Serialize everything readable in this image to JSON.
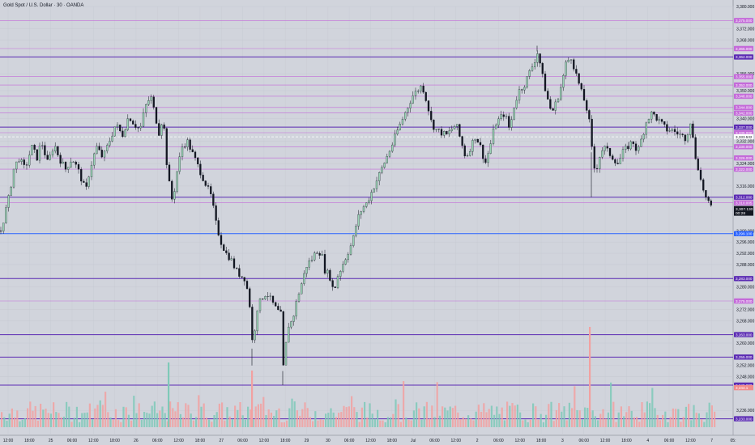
{
  "chart_data": {
    "type": "candlestick",
    "title": "Gold Spot / U.S. Dollar · 30 · OANDA",
    "instrument": "Gold Spot / U.S. Dollar",
    "timeframe": "30",
    "source": "OANDA",
    "ylim": [
      3230,
      3380
    ],
    "y_ticks": [
      3380,
      3372,
      3368,
      3356,
      3350,
      3340,
      3332,
      3324,
      3316,
      3300,
      3296,
      3292,
      3288,
      3280,
      3272,
      3268,
      3260,
      3252,
      3248,
      3236
    ],
    "x_tick_labels": [
      "12:00",
      "18:00",
      "25",
      "06:00",
      "12:00",
      "18:00",
      "26",
      "06:00",
      "12:00",
      "18:00",
      "27",
      "06:00",
      "12:00",
      "18:00",
      "29",
      "30",
      "06:00",
      "12:00",
      "18:00",
      "Jul",
      "06:00",
      "12:00",
      "2",
      "06:00",
      "12:00",
      "18:00",
      "3",
      "06:00",
      "12:00",
      "18:00",
      "4",
      "06:00",
      "12:00",
      "7",
      "05:"
    ],
    "price_line_label": "3,333.532",
    "last_price": {
      "price": "3,307.130",
      "countdown": "00:28",
      "value": 3307.13
    },
    "levels": [
      {
        "price": 3375,
        "label": "3,375.000",
        "type": "minor"
      },
      {
        "price": 3365,
        "label": "3,365.000",
        "type": "minor"
      },
      {
        "price": 3362,
        "label": "3,362.000",
        "type": "major"
      },
      {
        "price": 3355,
        "label": "3,355.000",
        "type": "minor"
      },
      {
        "price": 3352,
        "label": "3,352.000",
        "type": "minor"
      },
      {
        "price": 3348,
        "label": "3,348.000",
        "type": "minor"
      },
      {
        "price": 3344,
        "label": "3,344.000",
        "type": "minor"
      },
      {
        "price": 3342,
        "label": "3,342.000",
        "type": "minor"
      },
      {
        "price": 3337,
        "label": "3,337.000",
        "type": "major"
      },
      {
        "price": 3335,
        "label": "3,335.000",
        "type": "minor"
      },
      {
        "price": 3330,
        "label": "3,330.000",
        "type": "minor"
      },
      {
        "price": 3326,
        "label": "3,326.000",
        "type": "minor"
      },
      {
        "price": 3322,
        "label": "3,322.000",
        "type": "minor"
      },
      {
        "price": 3312,
        "label": "3,312.080",
        "type": "major"
      },
      {
        "price": 3310,
        "label": "3,310.005",
        "type": "minor"
      },
      {
        "price": 3299,
        "label": "3,299.100",
        "type": "blue"
      },
      {
        "price": 3283,
        "label": "3,283.000",
        "type": "major"
      },
      {
        "price": 3275,
        "label": "3,275.000",
        "type": "minor"
      },
      {
        "price": 3263,
        "label": "3,263.000",
        "type": "major"
      },
      {
        "price": 3255,
        "label": "3,255.000",
        "type": "major"
      },
      {
        "price": 3245,
        "label": "3,245.000",
        "type": "major"
      },
      {
        "price": 3233,
        "label": "3,233.000",
        "type": "major"
      }
    ],
    "volume_tag": "3,244.1",
    "price_path": [
      [
        0,
        3300
      ],
      [
        5,
        3306
      ],
      [
        10,
        3312
      ],
      [
        16,
        3322
      ],
      [
        22,
        3326
      ],
      [
        30,
        3322
      ],
      [
        38,
        3330
      ],
      [
        45,
        3326
      ],
      [
        50,
        3332
      ],
      [
        58,
        3324
      ],
      [
        66,
        3331
      ],
      [
        72,
        3326
      ],
      [
        80,
        3322
      ],
      [
        88,
        3326
      ],
      [
        95,
        3322
      ],
      [
        100,
        3318
      ],
      [
        105,
        3314
      ],
      [
        110,
        3322
      ],
      [
        118,
        3330
      ],
      [
        126,
        3326
      ],
      [
        134,
        3332
      ],
      [
        142,
        3338
      ],
      [
        150,
        3334
      ],
      [
        158,
        3341
      ],
      [
        165,
        3338
      ],
      [
        172,
        3336
      ],
      [
        178,
        3344
      ],
      [
        185,
        3348
      ],
      [
        190,
        3342
      ],
      [
        196,
        3334
      ],
      [
        200,
        3342
      ],
      [
        206,
        3320
      ],
      [
        212,
        3310
      ],
      [
        218,
        3322
      ],
      [
        224,
        3330
      ],
      [
        230,
        3332
      ],
      [
        236,
        3328
      ],
      [
        242,
        3324
      ],
      [
        248,
        3320
      ],
      [
        254,
        3316
      ],
      [
        260,
        3312
      ],
      [
        266,
        3302
      ],
      [
        272,
        3296
      ],
      [
        278,
        3292
      ],
      [
        284,
        3290
      ],
      [
        290,
        3286
      ],
      [
        296,
        3284
      ],
      [
        302,
        3283
      ],
      [
        308,
        3272
      ],
      [
        311,
        3258
      ],
      [
        316,
        3272
      ],
      [
        322,
        3276
      ],
      [
        328,
        3278
      ],
      [
        334,
        3275
      ],
      [
        340,
        3272
      ],
      [
        346,
        3270
      ],
      [
        349,
        3250
      ],
      [
        354,
        3266
      ],
      [
        360,
        3268
      ],
      [
        366,
        3276
      ],
      [
        372,
        3282
      ],
      [
        378,
        3288
      ],
      [
        384,
        3290
      ],
      [
        390,
        3293
      ],
      [
        396,
        3292
      ],
      [
        400,
        3286
      ],
      [
        406,
        3284
      ],
      [
        411,
        3278
      ],
      [
        416,
        3284
      ],
      [
        422,
        3288
      ],
      [
        428,
        3292
      ],
      [
        434,
        3296
      ],
      [
        440,
        3304
      ],
      [
        446,
        3308
      ],
      [
        452,
        3310
      ],
      [
        458,
        3314
      ],
      [
        464,
        3318
      ],
      [
        470,
        3322
      ],
      [
        476,
        3326
      ],
      [
        482,
        3330
      ],
      [
        490,
        3336
      ],
      [
        496,
        3340
      ],
      [
        502,
        3344
      ],
      [
        508,
        3348
      ],
      [
        514,
        3350
      ],
      [
        520,
        3352
      ],
      [
        526,
        3346
      ],
      [
        532,
        3338
      ],
      [
        538,
        3336
      ],
      [
        544,
        3335
      ],
      [
        550,
        3334
      ],
      [
        556,
        3336
      ],
      [
        562,
        3338
      ],
      [
        568,
        3332
      ],
      [
        574,
        3326
      ],
      [
        580,
        3330
      ],
      [
        586,
        3334
      ],
      [
        592,
        3330
      ],
      [
        598,
        3324
      ],
      [
        604,
        3330
      ],
      [
        610,
        3338
      ],
      [
        616,
        3340
      ],
      [
        622,
        3342
      ],
      [
        628,
        3336
      ],
      [
        634,
        3345
      ],
      [
        640,
        3350
      ],
      [
        646,
        3352
      ],
      [
        652,
        3356
      ],
      [
        658,
        3360
      ],
      [
        663,
        3364
      ],
      [
        668,
        3356
      ],
      [
        674,
        3348
      ],
      [
        680,
        3342
      ],
      [
        686,
        3346
      ],
      [
        692,
        3352
      ],
      [
        698,
        3360
      ],
      [
        704,
        3362
      ],
      [
        710,
        3356
      ],
      [
        716,
        3350
      ],
      [
        722,
        3345
      ],
      [
        726,
        3340
      ],
      [
        730,
        3328
      ],
      [
        734,
        3320
      ],
      [
        738,
        3326
      ],
      [
        744,
        3330
      ],
      [
        750,
        3328
      ],
      [
        756,
        3326
      ],
      [
        762,
        3324
      ],
      [
        768,
        3328
      ],
      [
        774,
        3330
      ],
      [
        780,
        3332
      ],
      [
        786,
        3328
      ],
      [
        792,
        3334
      ],
      [
        798,
        3340
      ],
      [
        804,
        3342
      ],
      [
        810,
        3340
      ],
      [
        816,
        3338
      ],
      [
        822,
        3336
      ],
      [
        828,
        3336
      ],
      [
        834,
        3335
      ],
      [
        840,
        3334
      ],
      [
        846,
        3333
      ],
      [
        852,
        3340
      ],
      [
        856,
        3328
      ],
      [
        860,
        3324
      ],
      [
        864,
        3318
      ],
      [
        868,
        3314
      ],
      [
        872,
        3310
      ],
      [
        876,
        3309
      ],
      [
        880,
        3307
      ]
    ]
  }
}
